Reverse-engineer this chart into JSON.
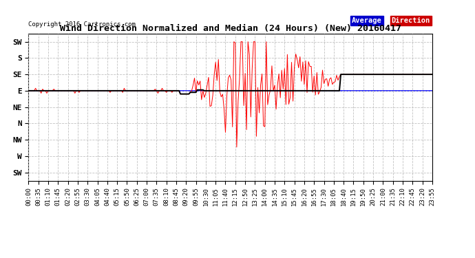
{
  "title": "Wind Direction Normalized and Median (24 Hours) (New) 20160417",
  "copyright": "Copyright 2016 Cartronics.com",
  "background_color": "#ffffff",
  "plot_bg_color": "#ffffff",
  "grid_color": "#bbbbbb",
  "ytick_labels": [
    "SW",
    "S",
    "SE",
    "E",
    "NE",
    "N",
    "NW",
    "W",
    "SW"
  ],
  "ytick_values": [
    8,
    7,
    6,
    5,
    4,
    3,
    2,
    1,
    0
  ],
  "ylim": [
    -0.5,
    8.5
  ],
  "legend_average_bg": "#0000cc",
  "legend_direction_bg": "#cc0000",
  "legend_text_color": "#ffffff",
  "red_line_color": "#ff0000",
  "black_line_color": "#000000",
  "blue_line_color": "#0000ff",
  "num_points": 288,
  "minutes_per_point": 5
}
